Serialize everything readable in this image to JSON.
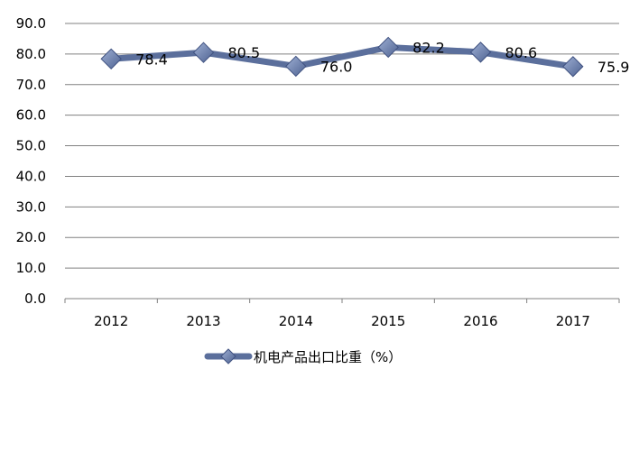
{
  "chart_data": {
    "type": "line",
    "categories": [
      "2012",
      "2013",
      "2014",
      "2015",
      "2016",
      "2017"
    ],
    "series": [
      {
        "name": "机电产品出口比重（%）",
        "values": [
          78.4,
          80.5,
          76.0,
          82.2,
          80.6,
          75.9
        ],
        "data_labels": [
          "78.4",
          "80.5",
          "76.0",
          "82.2",
          "80.6",
          "75.9"
        ]
      }
    ],
    "ylim": [
      0,
      90
    ],
    "yticks": [
      "0.0",
      "10.0",
      "20.0",
      "30.0",
      "40.0",
      "50.0",
      "60.0",
      "70.0",
      "80.0",
      "90.0"
    ],
    "grid": true,
    "legend_position": "bottom",
    "line_color": "#5b6f9c",
    "marker_color": "#6d83b0",
    "marker": "diamond"
  }
}
